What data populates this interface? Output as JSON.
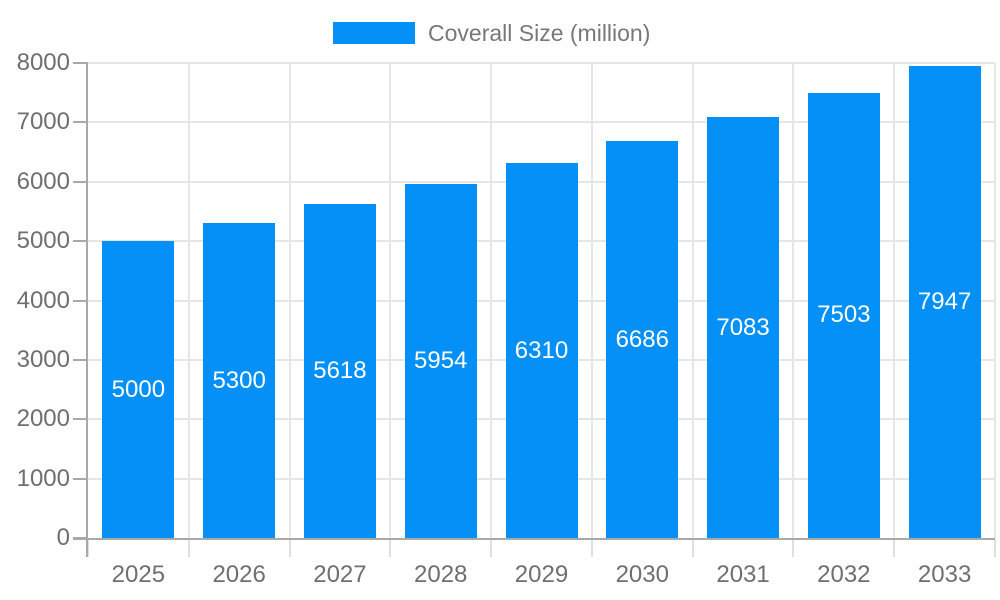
{
  "legend": {
    "label": "Coverall Size (million)"
  },
  "colors": {
    "bar": "#0590f8",
    "grid": "#e6e6e6",
    "grid_light": "#e0e0e0",
    "axis": "#a9a9a9",
    "text": "#6f6f6f",
    "legend_text": "#787878",
    "bar_label": "#ffffff",
    "background": "#ffffff"
  },
  "chart_data": {
    "type": "bar",
    "title": "",
    "categories": [
      "2025",
      "2026",
      "2027",
      "2028",
      "2029",
      "2030",
      "2031",
      "2032",
      "2033"
    ],
    "series": [
      {
        "name": "Coverall Size (million)",
        "values": [
          5000,
          5300,
          5618,
          5954,
          6310,
          6686,
          7083,
          7503,
          7947
        ]
      }
    ],
    "xlabel": "",
    "ylabel": "",
    "ylim": [
      0,
      8000
    ],
    "yticks": [
      0,
      1000,
      2000,
      3000,
      4000,
      5000,
      6000,
      7000,
      8000
    ],
    "grid": true,
    "legend_position": "top-center",
    "bar_value_labels": "inside-center"
  }
}
